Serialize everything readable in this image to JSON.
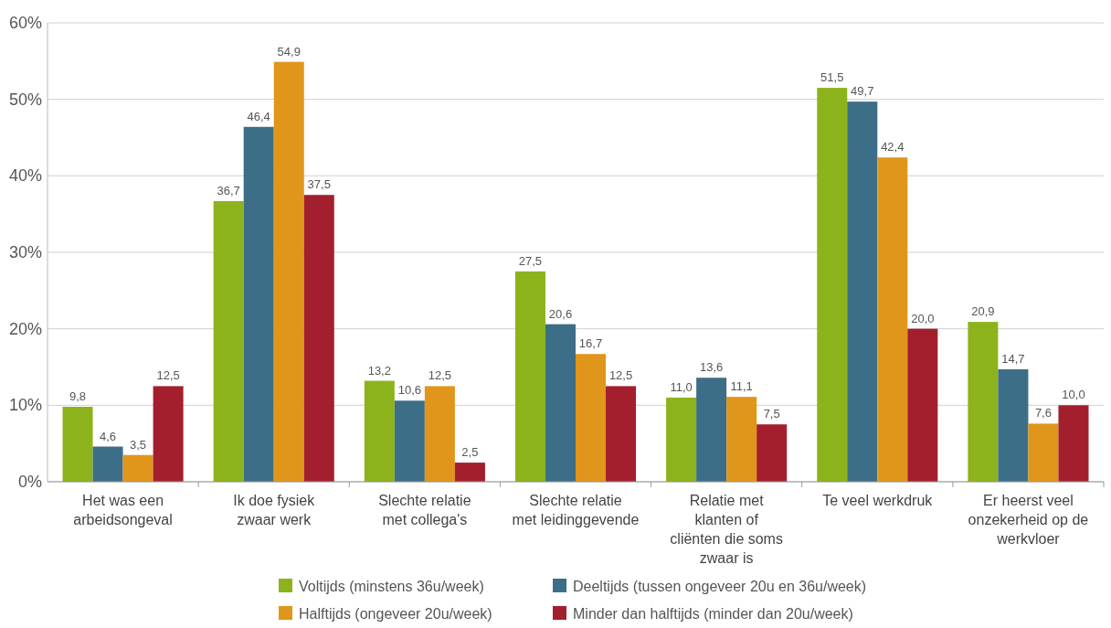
{
  "chart_data": {
    "type": "bar",
    "categories": [
      "Het was een arbeidsongeval",
      "Ik doe fysiek zwaar werk",
      "Slechte relatie met collega's",
      "Slechte relatie met leidinggevende",
      "Relatie met klanten of cliënten die soms zwaar is",
      "Te veel werkdruk",
      "Er heerst veel onzekerheid op de werkvloer"
    ],
    "series": [
      {
        "name": "Voltijds (minstens 36u/week)",
        "color": "#8db31c",
        "values": [
          9.8,
          36.7,
          13.2,
          27.5,
          11.0,
          51.5,
          20.9
        ],
        "value_labels": [
          "9,8",
          "36,7",
          "13,2",
          "27,5",
          "11,0",
          "51,5",
          "20,9"
        ]
      },
      {
        "name": "Deeltijds (tussen ongeveer 20u en 36u/week)",
        "color": "#3d6e87",
        "values": [
          4.6,
          46.4,
          10.6,
          20.6,
          13.6,
          49.7,
          14.7
        ],
        "value_labels": [
          "4,6",
          "46,4",
          "10,6",
          "20,6",
          "13,6",
          "49,7",
          "14,7"
        ]
      },
      {
        "name": "Halftijds (ongeveer 20u/week)",
        "color": "#e0961a",
        "values": [
          3.5,
          54.9,
          12.5,
          16.7,
          11.1,
          42.4,
          7.6
        ],
        "value_labels": [
          "3,5",
          "54,9",
          "12,5",
          "16,7",
          "11,1",
          "42,4",
          "7,6"
        ]
      },
      {
        "name": "Minder dan halftijds (minder dan 20u/week)",
        "color": "#a31f2e",
        "values": [
          12.5,
          37.5,
          2.5,
          12.5,
          7.5,
          20.0,
          10.0
        ],
        "value_labels": [
          "12,5",
          "37,5",
          "2,5",
          "12,5",
          "7,5",
          "20,0",
          "10,0"
        ]
      }
    ],
    "ylim": [
      0,
      60
    ],
    "yticks": [
      {
        "value": 0,
        "label": "0%"
      },
      {
        "value": 10,
        "label": "10%"
      },
      {
        "value": 20,
        "label": "20%"
      },
      {
        "value": 30,
        "label": "30%"
      },
      {
        "value": 40,
        "label": "40%"
      },
      {
        "value": 50,
        "label": "50%"
      },
      {
        "value": 60,
        "label": "60%"
      }
    ],
    "grid": "y",
    "legend": "bottom"
  }
}
